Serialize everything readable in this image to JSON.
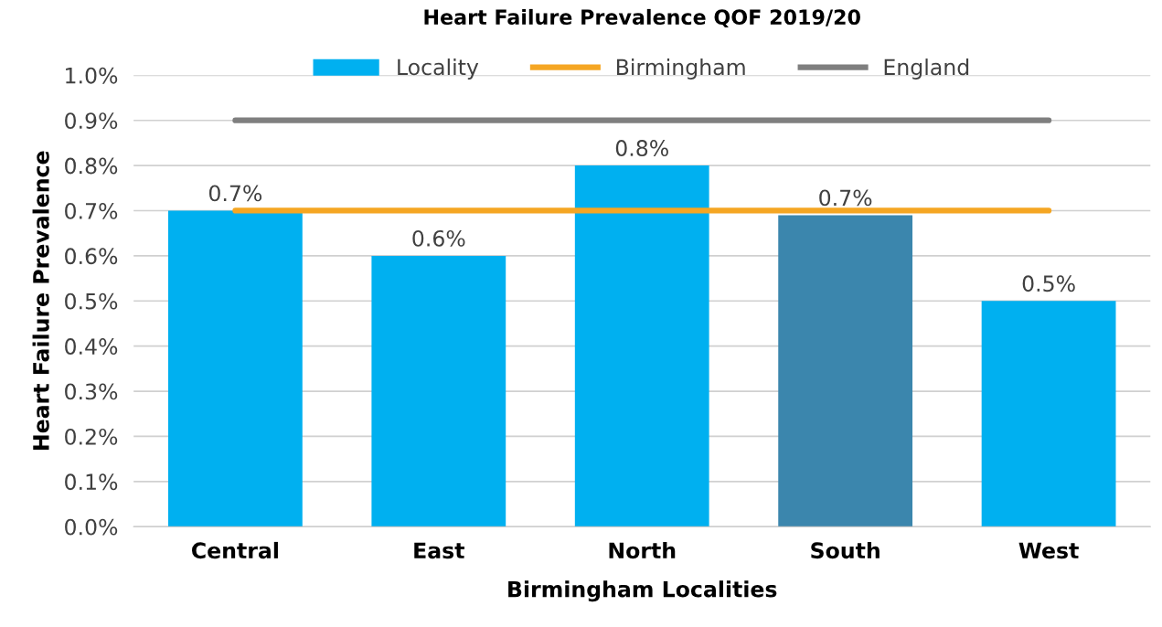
{
  "chart_data": {
    "type": "bar",
    "title": "Heart Failure Prevalence QOF 2019/20",
    "xlabel": "Birmingham Localities",
    "ylabel": "Heart Failure Prevalence",
    "categories": [
      "Central",
      "East",
      "North",
      "South",
      "West"
    ],
    "series": [
      {
        "name": "Locality",
        "color": "#00b0f0",
        "colors": [
          "#00b0f0",
          "#00b0f0",
          "#00b0f0",
          "#3b86ad",
          "#00b0f0"
        ],
        "values": [
          0.7,
          0.6,
          0.8,
          0.69,
          0.5
        ],
        "value_labels": [
          "0.7%",
          "0.6%",
          "0.8%",
          "0.7%",
          "0.5%"
        ]
      },
      {
        "name": "Birmingham",
        "type": "line",
        "color": "#f5a623",
        "values": [
          0.7,
          0.7,
          0.7,
          0.7,
          0.7
        ]
      },
      {
        "name": "England",
        "type": "line",
        "color": "#7f7f7f",
        "values": [
          0.9,
          0.9,
          0.9,
          0.9,
          0.9
        ]
      }
    ],
    "ylim": [
      0,
      1.0
    ],
    "yticks": [
      {
        "value": 0,
        "label": "0.0%"
      },
      {
        "value": 0.1,
        "label": "0.1%"
      },
      {
        "value": 0.2,
        "label": "0.2%"
      },
      {
        "value": 0.3,
        "label": "0.3%"
      },
      {
        "value": 0.4,
        "label": "0.4%"
      },
      {
        "value": 0.5,
        "label": "0.5%"
      },
      {
        "value": 0.6,
        "label": "0.6%"
      },
      {
        "value": 0.7,
        "label": "0.7%"
      },
      {
        "value": 0.8,
        "label": "0.8%"
      },
      {
        "value": 0.9,
        "label": "0.9%"
      },
      {
        "value": 1.0,
        "label": "1.0%"
      }
    ],
    "grid": "y",
    "legend": "top"
  }
}
